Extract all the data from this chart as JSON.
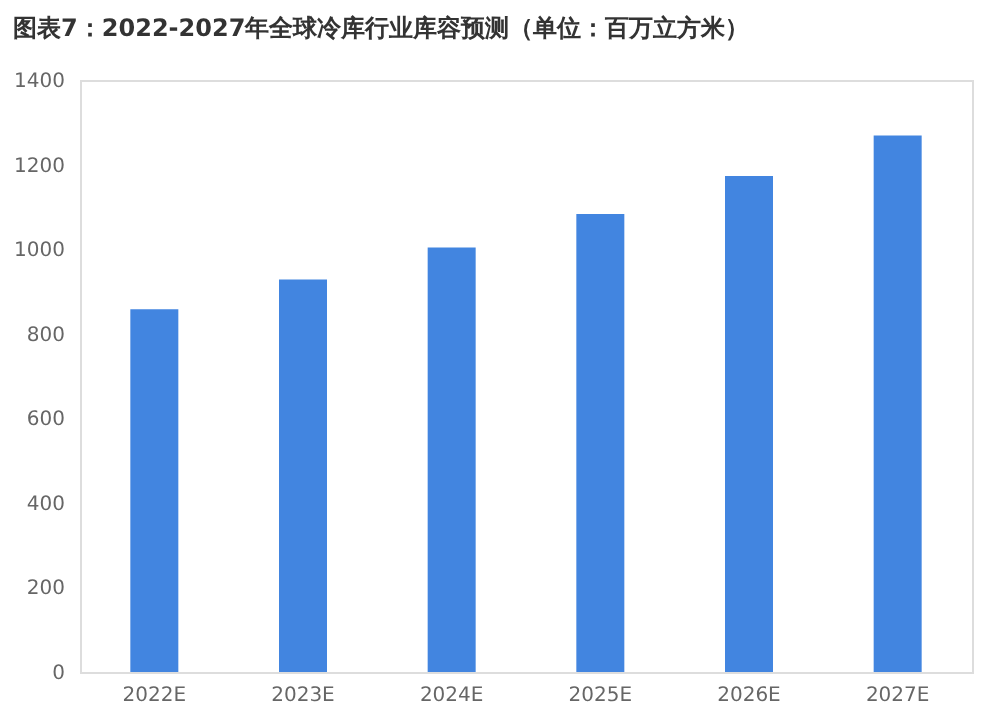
{
  "chart_data": {
    "type": "bar",
    "title": "图表7：2022-2027年全球冷库行业库容预测（单位：百万立方米）",
    "categories": [
      "2022E",
      "2023E",
      "2024E",
      "2025E",
      "2026E",
      "2027E"
    ],
    "values": [
      858,
      928,
      1004,
      1083,
      1173,
      1269
    ],
    "color": "#4285e0",
    "ylim": [
      0,
      1400
    ],
    "yticks": [
      0,
      200,
      400,
      600,
      800,
      1000,
      1200,
      1400
    ],
    "grid": false
  }
}
